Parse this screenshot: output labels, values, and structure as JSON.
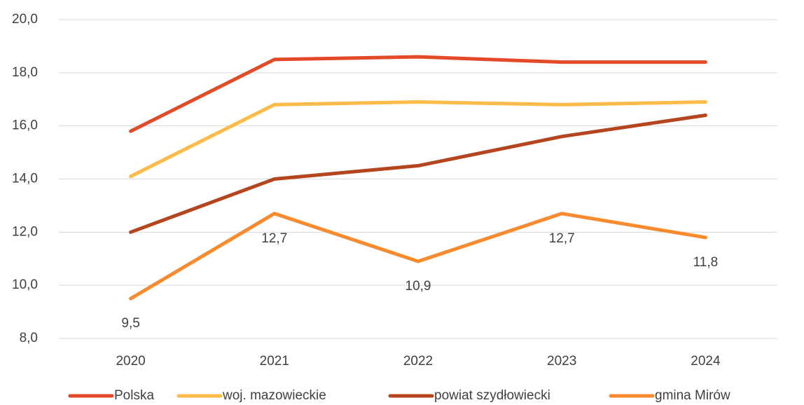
{
  "chart_data": {
    "type": "line",
    "categories": [
      "2020",
      "2021",
      "2022",
      "2023",
      "2024"
    ],
    "series": [
      {
        "name": "Polska",
        "color": "#e34a27",
        "values": [
          15.8,
          18.5,
          18.6,
          18.4,
          18.4
        ]
      },
      {
        "name": "woj. mazowieckie",
        "color": "#fdbb4a",
        "values": [
          14.1,
          16.8,
          16.9,
          16.8,
          16.9
        ]
      },
      {
        "name": "powiat szydłowiecki",
        "color": "#b5451f",
        "values": [
          12.0,
          14.0,
          14.5,
          15.6,
          16.4
        ]
      },
      {
        "name": "gmina Mirów",
        "color": "#f98a2e",
        "values": [
          9.5,
          12.7,
          10.9,
          12.7,
          11.8
        ],
        "value_labels": [
          "9,5",
          "12,7",
          "10,9",
          "12,7",
          "11,8"
        ]
      }
    ],
    "ylim": [
      8,
      20
    ],
    "yticks": [
      {
        "value": 8,
        "label": "8,0"
      },
      {
        "value": 10,
        "label": "10,0"
      },
      {
        "value": 12,
        "label": "12,0"
      },
      {
        "value": 14,
        "label": "14,0"
      },
      {
        "value": 16,
        "label": "16,0"
      },
      {
        "value": 18,
        "label": "18,0"
      },
      {
        "value": 20,
        "label": "20,0"
      }
    ],
    "grid": true,
    "legend": "bottom"
  }
}
